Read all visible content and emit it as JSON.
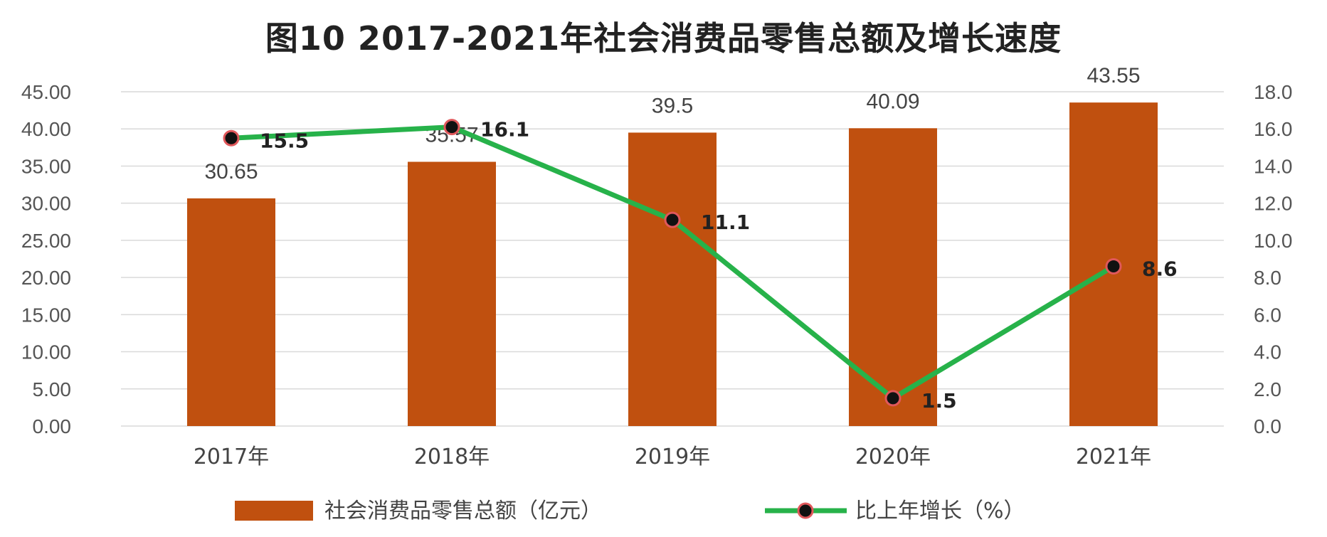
{
  "chart_data": {
    "type": "bar",
    "title": "图10  2017-2021年社会消费品零售总额及增长速度",
    "categories": [
      "2017年",
      "2018年",
      "2019年",
      "2020年",
      "2021年"
    ],
    "series": [
      {
        "name": "社会消费品零售总额（亿元）",
        "type": "bar",
        "axis": "left",
        "color": "#C0500F",
        "values": [
          30.65,
          35.57,
          39.5,
          40.09,
          43.55
        ],
        "labels": [
          "30.65",
          "35.57",
          "39.5",
          "40.09",
          "43.55"
        ]
      },
      {
        "name": "比上年增长（%）",
        "type": "line",
        "axis": "right",
        "color": "#27B24A",
        "marker": "black-dot-red-outline",
        "values": [
          15.5,
          16.1,
          11.1,
          1.5,
          8.6
        ],
        "labels": [
          "15.5",
          "16.1",
          "11.1",
          "1.5",
          "8.6"
        ]
      }
    ],
    "y_left": {
      "ylim": [
        0,
        45
      ],
      "ticks": [
        "0.00",
        "5.00",
        "10.00",
        "15.00",
        "20.00",
        "25.00",
        "30.00",
        "35.00",
        "40.00",
        "45.00"
      ]
    },
    "y_right": {
      "ylim": [
        0,
        18
      ],
      "ticks": [
        "0.0",
        "2.0",
        "4.0",
        "6.0",
        "8.0",
        "10.0",
        "12.0",
        "14.0",
        "16.0",
        "18.0"
      ]
    },
    "grid": true,
    "legend_position": "bottom"
  }
}
